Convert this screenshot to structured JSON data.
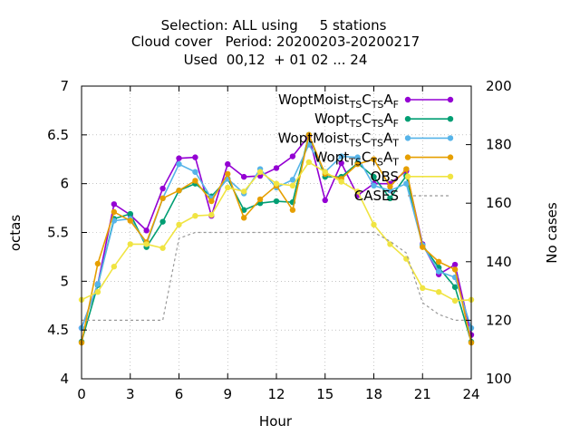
{
  "chart_data": {
    "type": "line",
    "title_lines": [
      "Selection: ALL using     5 stations",
      "Cloud cover   Period: 20200203-20200217",
      "Used  00,12  + 01 02 ... 24"
    ],
    "xlabel": "Hour",
    "ylabel": "octas",
    "y2label": "No cases",
    "xlim": [
      0,
      24
    ],
    "ylim": [
      4,
      7
    ],
    "y2lim": [
      100,
      200
    ],
    "xticks": [
      0,
      3,
      6,
      9,
      12,
      15,
      18,
      21,
      24
    ],
    "yticks": [
      4,
      4.5,
      5,
      5.5,
      6,
      6.5,
      7
    ],
    "y2ticks": [
      100,
      120,
      140,
      160,
      180,
      200
    ],
    "x": [
      0,
      1,
      2,
      3,
      4,
      5,
      6,
      7,
      8,
      9,
      10,
      11,
      12,
      13,
      14,
      15,
      16,
      17,
      18,
      19,
      20,
      21,
      22,
      23,
      24
    ],
    "grid": true,
    "legend_position": "top-right",
    "series": [
      {
        "name": "WoptMoist_TSC_TSA_F",
        "legend": {
          "main": "WoptMoist",
          "parts": [
            [
              "TS",
              "sub"
            ],
            [
              "C",
              ""
            ],
            [
              "TS",
              "sub"
            ],
            [
              "A",
              ""
            ],
            [
              "F",
              "sub"
            ]
          ]
        },
        "color": "#9400d3",
        "marker": "circle",
        "axis": "y",
        "values": [
          4.52,
          4.97,
          5.79,
          5.68,
          5.52,
          5.95,
          6.26,
          6.27,
          5.67,
          6.2,
          6.07,
          6.08,
          6.16,
          6.28,
          6.49,
          5.83,
          6.21,
          5.88,
          6.0,
          6.0,
          6.13,
          5.38,
          5.07,
          5.17,
          4.45
        ]
      },
      {
        "name": "Wopt_TSC_TSA_F",
        "legend": {
          "main": "Wopt",
          "parts": [
            [
              "TS",
              "sub"
            ],
            [
              "C",
              ""
            ],
            [
              "TS",
              "sub"
            ],
            [
              "A",
              ""
            ],
            [
              "F",
              "sub"
            ]
          ]
        },
        "color": "#009e73",
        "marker": "circle",
        "axis": "y",
        "values": [
          4.38,
          4.96,
          5.64,
          5.69,
          5.35,
          5.61,
          5.93,
          6.0,
          5.87,
          6.05,
          5.73,
          5.8,
          5.82,
          5.81,
          6.5,
          6.07,
          6.07,
          6.21,
          6.07,
          5.85,
          6.08,
          5.37,
          5.14,
          4.94,
          4.38
        ]
      },
      {
        "name": "WoptMoist_TSC_TSA_T",
        "legend": {
          "main": "WoptMoist",
          "parts": [
            [
              "TS",
              "sub"
            ],
            [
              "C",
              ""
            ],
            [
              "TS",
              "sub"
            ],
            [
              "A",
              ""
            ],
            [
              "T",
              "sub"
            ]
          ]
        },
        "color": "#56b4e9",
        "marker": "circle",
        "axis": "y",
        "values": [
          4.52,
          4.97,
          5.62,
          5.64,
          5.38,
          5.85,
          6.2,
          6.12,
          5.85,
          6.05,
          5.9,
          6.15,
          5.96,
          6.04,
          6.4,
          6.12,
          6.28,
          6.27,
          5.98,
          5.93,
          6.0,
          5.37,
          5.1,
          5.04,
          4.52
        ]
      },
      {
        "name": "Wopt_TSC_TSA_T",
        "legend": {
          "main": "Wopt",
          "parts": [
            [
              "TS",
              "sub"
            ],
            [
              "C",
              ""
            ],
            [
              "TS",
              "sub"
            ],
            [
              "A",
              ""
            ],
            [
              "T",
              "sub"
            ]
          ]
        },
        "color": "#e69f00",
        "marker": "circle",
        "axis": "y",
        "values": [
          4.37,
          5.18,
          5.71,
          5.62,
          5.4,
          5.85,
          5.93,
          6.03,
          5.82,
          6.1,
          5.65,
          5.84,
          5.98,
          5.73,
          6.5,
          6.1,
          6.05,
          6.2,
          6.25,
          5.97,
          6.15,
          5.35,
          5.2,
          5.12,
          4.37
        ]
      },
      {
        "name": "OBS",
        "legend": {
          "main": "OBS",
          "parts": []
        },
        "color": "#f0e442",
        "marker": "circle",
        "axis": "y",
        "values": [
          4.81,
          4.89,
          5.15,
          5.38,
          5.38,
          5.34,
          5.58,
          5.67,
          5.68,
          5.96,
          5.92,
          6.12,
          6.0,
          5.98,
          6.22,
          6.12,
          6.02,
          5.92,
          5.58,
          5.38,
          5.23,
          4.93,
          4.89,
          4.8,
          4.81
        ]
      },
      {
        "name": "CASES",
        "legend": {
          "main": "CASES",
          "parts": []
        },
        "color": "#999999",
        "marker": "none",
        "dash": "3,3",
        "axis": "y2",
        "values": [
          120,
          120,
          120,
          120,
          120,
          120,
          148,
          150,
          150,
          150,
          150,
          150,
          150,
          150,
          150,
          150,
          150,
          150,
          150,
          147,
          143,
          126,
          122,
          120,
          120
        ]
      }
    ]
  }
}
